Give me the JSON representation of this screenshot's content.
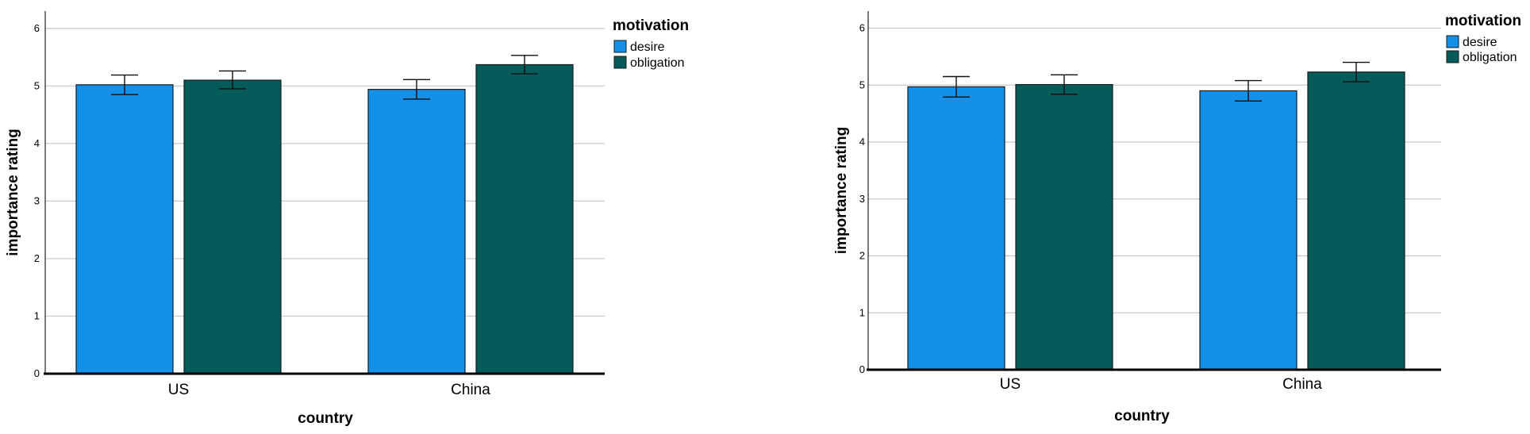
{
  "chart_data": [
    {
      "type": "bar",
      "categories": [
        "US",
        "China"
      ],
      "series": [
        {
          "name": "desire",
          "values": [
            5.02,
            4.94
          ],
          "error": [
            [
              4.85,
              5.19
            ],
            [
              4.77,
              5.11
            ]
          ],
          "color": "#1490E8"
        },
        {
          "name": "obligation",
          "values": [
            5.1,
            5.37
          ],
          "error": [
            [
              4.95,
              5.26
            ],
            [
              5.21,
              5.53
            ]
          ],
          "color": "#045B5A"
        }
      ],
      "xlabel": "country",
      "ylabel": "importance rating",
      "ylim": [
        0,
        6.3
      ],
      "yticks": [
        0,
        1,
        2,
        3,
        4,
        5,
        6
      ],
      "legend_title": "motivation",
      "legend_position": "top-right",
      "grid": true
    },
    {
      "type": "bar",
      "categories": [
        "US",
        "China"
      ],
      "series": [
        {
          "name": "desire",
          "values": [
            4.97,
            4.9
          ],
          "error": [
            [
              4.79,
              5.15
            ],
            [
              4.72,
              5.08
            ]
          ],
          "color": "#1490E8"
        },
        {
          "name": "obligation",
          "values": [
            5.01,
            5.23
          ],
          "error": [
            [
              4.84,
              5.18
            ],
            [
              5.06,
              5.4
            ]
          ],
          "color": "#045B5A"
        }
      ],
      "xlabel": "country",
      "ylabel": "importance rating",
      "ylim": [
        0,
        6.3
      ],
      "yticks": [
        0,
        1,
        2,
        3,
        4,
        5,
        6
      ],
      "legend_title": "motivation",
      "legend_position": "top-right",
      "grid": true
    }
  ]
}
